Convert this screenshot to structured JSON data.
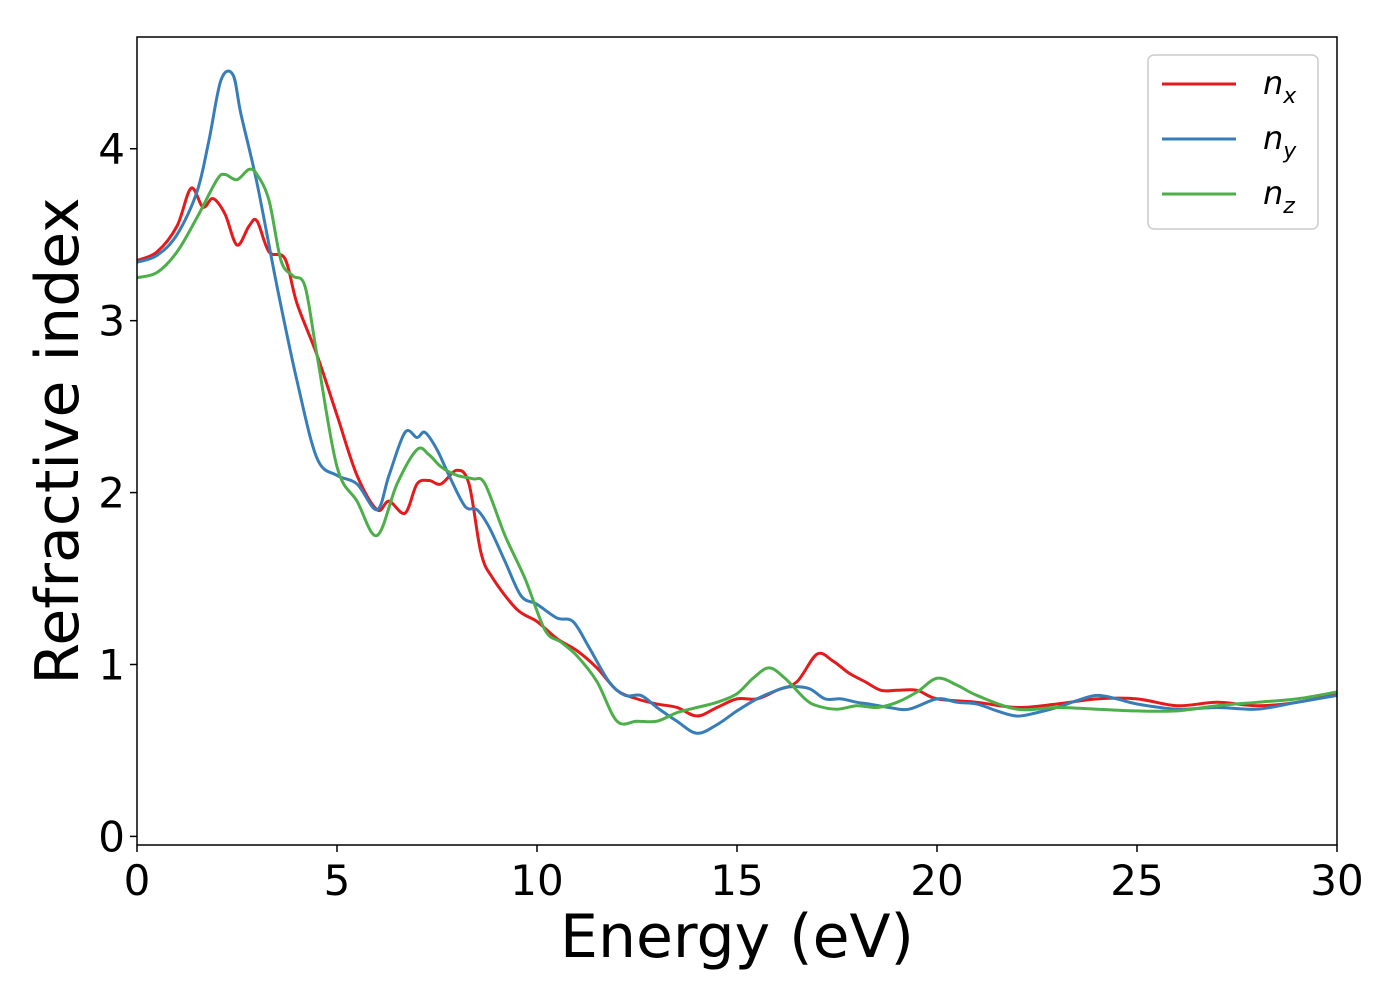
{
  "chart_data": {
    "type": "line",
    "xlabel": "Energy (eV)",
    "ylabel": "Refractive index",
    "xlim": [
      0,
      30
    ],
    "ylim": [
      -0.05,
      4.65
    ],
    "xticks": [
      0,
      5,
      10,
      15,
      20,
      25,
      30
    ],
    "xtick_labels": [
      "0",
      "5",
      "10",
      "15",
      "20",
      "25",
      "30"
    ],
    "yticks": [
      0,
      1,
      2,
      3,
      4
    ],
    "ytick_labels": [
      "0",
      "1",
      "2",
      "3",
      "4"
    ],
    "grid": false,
    "legend_position": "top-right",
    "series": [
      {
        "name": "n_x",
        "label_main": "n",
        "label_sub": "x",
        "color": "#e41a1c",
        "x": [
          0,
          0.5,
          1.0,
          1.35,
          1.65,
          1.9,
          2.2,
          2.5,
          2.8,
          3.0,
          3.3,
          3.7,
          4.0,
          4.5,
          5.0,
          5.5,
          6.0,
          6.3,
          6.7,
          7.0,
          7.3,
          7.6,
          8.0,
          8.3,
          8.6,
          8.9,
          9.5,
          10.0,
          10.5,
          11.0,
          11.5,
          12.0,
          12.5,
          13.0,
          13.5,
          14.0,
          14.5,
          15.0,
          15.5,
          16.0,
          16.5,
          17.0,
          17.4,
          17.8,
          18.2,
          18.6,
          19.0,
          19.5,
          20.0,
          21.0,
          22.0,
          23.0,
          24.0,
          25.0,
          26.0,
          27.0,
          28.0,
          29.0,
          30.0
        ],
        "y": [
          3.35,
          3.4,
          3.55,
          3.77,
          3.66,
          3.71,
          3.62,
          3.44,
          3.55,
          3.58,
          3.4,
          3.36,
          3.1,
          2.8,
          2.45,
          2.1,
          1.9,
          1.95,
          1.88,
          2.05,
          2.07,
          2.05,
          2.13,
          2.05,
          1.65,
          1.5,
          1.32,
          1.25,
          1.15,
          1.08,
          0.98,
          0.85,
          0.8,
          0.77,
          0.75,
          0.7,
          0.75,
          0.8,
          0.8,
          0.85,
          0.9,
          1.06,
          1.02,
          0.95,
          0.9,
          0.85,
          0.85,
          0.85,
          0.8,
          0.78,
          0.75,
          0.77,
          0.8,
          0.8,
          0.76,
          0.78,
          0.76,
          0.78,
          0.83
        ]
      },
      {
        "name": "n_y",
        "label_main": "n",
        "label_sub": "y",
        "color": "#377eb8",
        "x": [
          0,
          0.5,
          1.0,
          1.5,
          1.8,
          2.1,
          2.4,
          2.6,
          3.0,
          3.5,
          4.0,
          4.5,
          5.0,
          5.5,
          6.0,
          6.3,
          6.7,
          7.0,
          7.2,
          7.5,
          7.8,
          8.2,
          8.5,
          8.8,
          9.2,
          9.6,
          10.0,
          10.5,
          10.9,
          11.3,
          11.8,
          12.2,
          12.6,
          13.0,
          13.5,
          14.0,
          14.5,
          15.0,
          15.5,
          16.0,
          16.3,
          16.8,
          17.2,
          17.6,
          18.0,
          18.3,
          18.8,
          19.3,
          20.0,
          20.5,
          21.0,
          21.5,
          22.0,
          22.5,
          23.0,
          23.5,
          24.0,
          24.5,
          25.0,
          26.0,
          27.0,
          28.0,
          29.0,
          30.0
        ],
        "y": [
          3.34,
          3.38,
          3.5,
          3.75,
          4.05,
          4.4,
          4.43,
          4.2,
          3.8,
          3.2,
          2.65,
          2.2,
          2.1,
          2.05,
          1.9,
          2.1,
          2.35,
          2.32,
          2.35,
          2.25,
          2.1,
          1.92,
          1.9,
          1.8,
          1.6,
          1.4,
          1.35,
          1.27,
          1.25,
          1.1,
          0.9,
          0.82,
          0.82,
          0.75,
          0.67,
          0.6,
          0.65,
          0.73,
          0.8,
          0.85,
          0.87,
          0.86,
          0.8,
          0.8,
          0.78,
          0.77,
          0.75,
          0.74,
          0.8,
          0.78,
          0.77,
          0.73,
          0.7,
          0.72,
          0.75,
          0.79,
          0.82,
          0.8,
          0.77,
          0.74,
          0.75,
          0.74,
          0.78,
          0.82
        ]
      },
      {
        "name": "n_z",
        "label_main": "n",
        "label_sub": "z",
        "color": "#4daf4a",
        "x": [
          0,
          0.5,
          1.0,
          1.5,
          2.0,
          2.2,
          2.5,
          2.8,
          3.0,
          3.3,
          3.6,
          3.9,
          4.2,
          4.5,
          5.0,
          5.5,
          6.0,
          6.5,
          7.0,
          7.3,
          7.6,
          8.0,
          8.4,
          8.7,
          9.2,
          9.7,
          10.2,
          10.6,
          11.0,
          11.5,
          12.0,
          12.5,
          13.0,
          13.5,
          14.0,
          14.5,
          15.0,
          15.4,
          15.8,
          16.2,
          16.7,
          17.0,
          17.5,
          18.0,
          18.5,
          19.0,
          19.5,
          20.0,
          20.5,
          21.0,
          22.0,
          23.0,
          24.0,
          25.0,
          26.0,
          27.0,
          28.0,
          29.0,
          30.0
        ],
        "y": [
          3.25,
          3.28,
          3.4,
          3.6,
          3.82,
          3.85,
          3.82,
          3.88,
          3.85,
          3.7,
          3.35,
          3.26,
          3.2,
          2.8,
          2.15,
          1.95,
          1.75,
          2.05,
          2.25,
          2.22,
          2.15,
          2.1,
          2.08,
          2.05,
          1.75,
          1.5,
          1.2,
          1.13,
          1.05,
          0.9,
          0.67,
          0.67,
          0.67,
          0.72,
          0.75,
          0.78,
          0.83,
          0.92,
          0.98,
          0.92,
          0.8,
          0.76,
          0.74,
          0.76,
          0.75,
          0.78,
          0.84,
          0.92,
          0.88,
          0.82,
          0.74,
          0.75,
          0.74,
          0.73,
          0.73,
          0.76,
          0.78,
          0.8,
          0.84
        ]
      }
    ]
  }
}
